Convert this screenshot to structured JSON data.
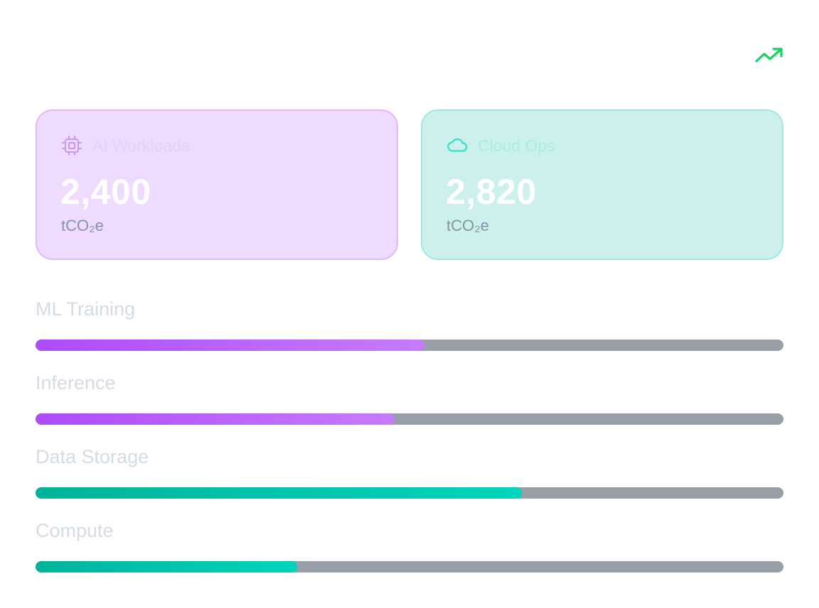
{
  "header": {
    "trend_icon": "trending-up-icon",
    "trend_color": "#19d163"
  },
  "cards": [
    {
      "id": "ai",
      "icon": "cpu-chip-icon",
      "title": "AI Workloads",
      "value": "2,400",
      "unit": "tCO₂e",
      "accent": "#b26af0"
    },
    {
      "id": "cloud",
      "icon": "cloud-icon",
      "title": "Cloud Ops",
      "value": "2,820",
      "unit": "tCO₂e",
      "accent": "#2fe3cc"
    }
  ],
  "breakdown": [
    {
      "label": "ML Training",
      "progress": 0.52,
      "color": "purple"
    },
    {
      "label": "Inference",
      "progress": 0.48,
      "color": "purple"
    },
    {
      "label": "Data Storage",
      "progress": 0.65,
      "color": "teal"
    },
    {
      "label": "Compute",
      "progress": 0.35,
      "color": "teal"
    }
  ]
}
